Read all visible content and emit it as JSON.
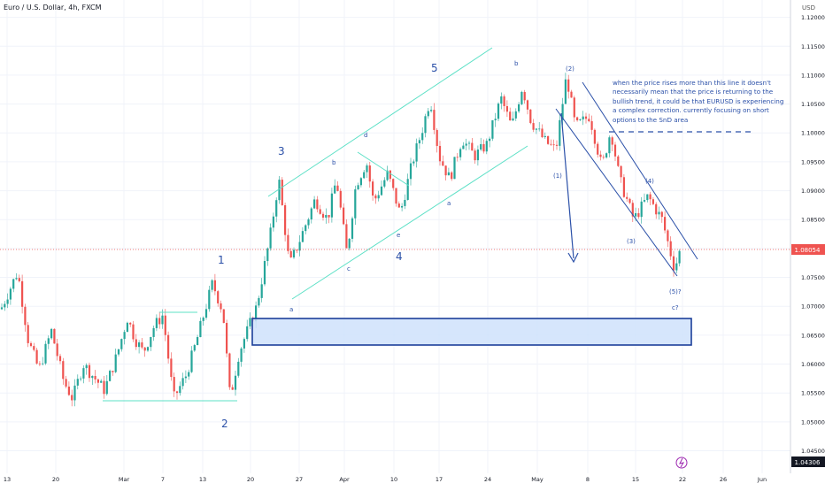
{
  "header": {
    "title": "Euro / U.S. Dollar, 4h, FXCM",
    "currency": "USD"
  },
  "chart_data": {
    "type": "candlestick",
    "x_ticks": [
      "13",
      "20",
      "Mar",
      "7",
      "13",
      "20",
      "27",
      "Apr",
      "10",
      "17",
      "24",
      "May",
      "8",
      "15",
      "22",
      "26",
      "Jun"
    ],
    "y_ticks": [
      "1.12000",
      "1.11500",
      "1.11000",
      "1.10500",
      "1.10000",
      "1.09500",
      "1.09000",
      "1.08500",
      "1.08000",
      "1.07500",
      "1.07000",
      "1.06500",
      "1.06000",
      "1.05500",
      "1.05000",
      "1.04500"
    ],
    "ylim": [
      1.0411,
      1.123
    ],
    "current_price": "1.08054",
    "low_marker": "1.04306",
    "path": [
      [
        1,
        1.0695
      ],
      [
        20,
        1.076
      ],
      [
        32,
        1.064
      ],
      [
        44,
        1.059
      ],
      [
        58,
        1.0658
      ],
      [
        72,
        1.057
      ],
      [
        82,
        1.054
      ],
      [
        94,
        1.06
      ],
      [
        118,
        1.0555
      ],
      [
        132,
        1.0615
      ],
      [
        144,
        1.068
      ],
      [
        152,
        1.0645
      ],
      [
        162,
        1.062
      ],
      [
        174,
        1.0665
      ],
      [
        184,
        1.0685
      ],
      [
        196,
        1.054
      ],
      [
        210,
        1.058
      ],
      [
        222,
        1.064
      ],
      [
        240,
        1.074
      ],
      [
        252,
        1.069
      ],
      [
        260,
        1.054
      ],
      [
        270,
        1.062
      ],
      [
        290,
        1.07
      ],
      [
        305,
        1.082
      ],
      [
        315,
        1.092
      ],
      [
        327,
        1.077
      ],
      [
        340,
        1.082
      ],
      [
        356,
        1.0885
      ],
      [
        370,
        1.085
      ],
      [
        380,
        1.092
      ],
      [
        392,
        1.079
      ],
      [
        402,
        1.091
      ],
      [
        414,
        1.095
      ],
      [
        422,
        1.088
      ],
      [
        438,
        1.093
      ],
      [
        452,
        1.086
      ],
      [
        466,
        1.095
      ],
      [
        476,
        1.1
      ],
      [
        486,
        1.106
      ],
      [
        496,
        1.096
      ],
      [
        508,
        1.092
      ],
      [
        522,
        1.099
      ],
      [
        536,
        1.096
      ],
      [
        550,
        1.098
      ],
      [
        566,
        1.106
      ],
      [
        578,
        1.101
      ],
      [
        590,
        1.108
      ],
      [
        600,
        1.102
      ],
      [
        616,
        1.0985
      ],
      [
        628,
        1.097
      ],
      [
        640,
        1.11
      ],
      [
        650,
        1.101
      ],
      [
        666,
        1.103
      ],
      [
        680,
        1.094
      ],
      [
        690,
        1.1005
      ],
      [
        700,
        1.092
      ],
      [
        716,
        1.085
      ],
      [
        732,
        1.089
      ],
      [
        748,
        1.085
      ],
      [
        762,
        1.0765
      ],
      [
        770,
        1.0805
      ]
    ],
    "annotations": {
      "wave_1": "1",
      "wave_2": "2",
      "wave_3": "3",
      "wave_4": "4",
      "wave_5": "5",
      "sub_b1": "b",
      "sub_c1": "c",
      "sub_d": "d",
      "sub_e": "e",
      "sub_a1": "a",
      "sub_a2": "a",
      "sub_b2": "b",
      "w_1": "(1)",
      "w_2": "(2)",
      "w_3": "(3)",
      "w_4": "(4)",
      "w_5": "(5)?",
      "w_c": "c?",
      "note": "when the price rises more than this line it doesn't necessarily mean that the price is returning to the bullish trend, it could be that EURUSD is experiencing a complex correction. currently focusing on short options to the SnD area"
    },
    "colors": {
      "up": "#26a69a",
      "down": "#ef5350",
      "channel": "#5ce0c6",
      "wave": "#2b50a8",
      "zone_fill": "#cfe2fc",
      "zone_border": "#1c3f99",
      "price_label": "#ef5350"
    },
    "grid": true
  }
}
